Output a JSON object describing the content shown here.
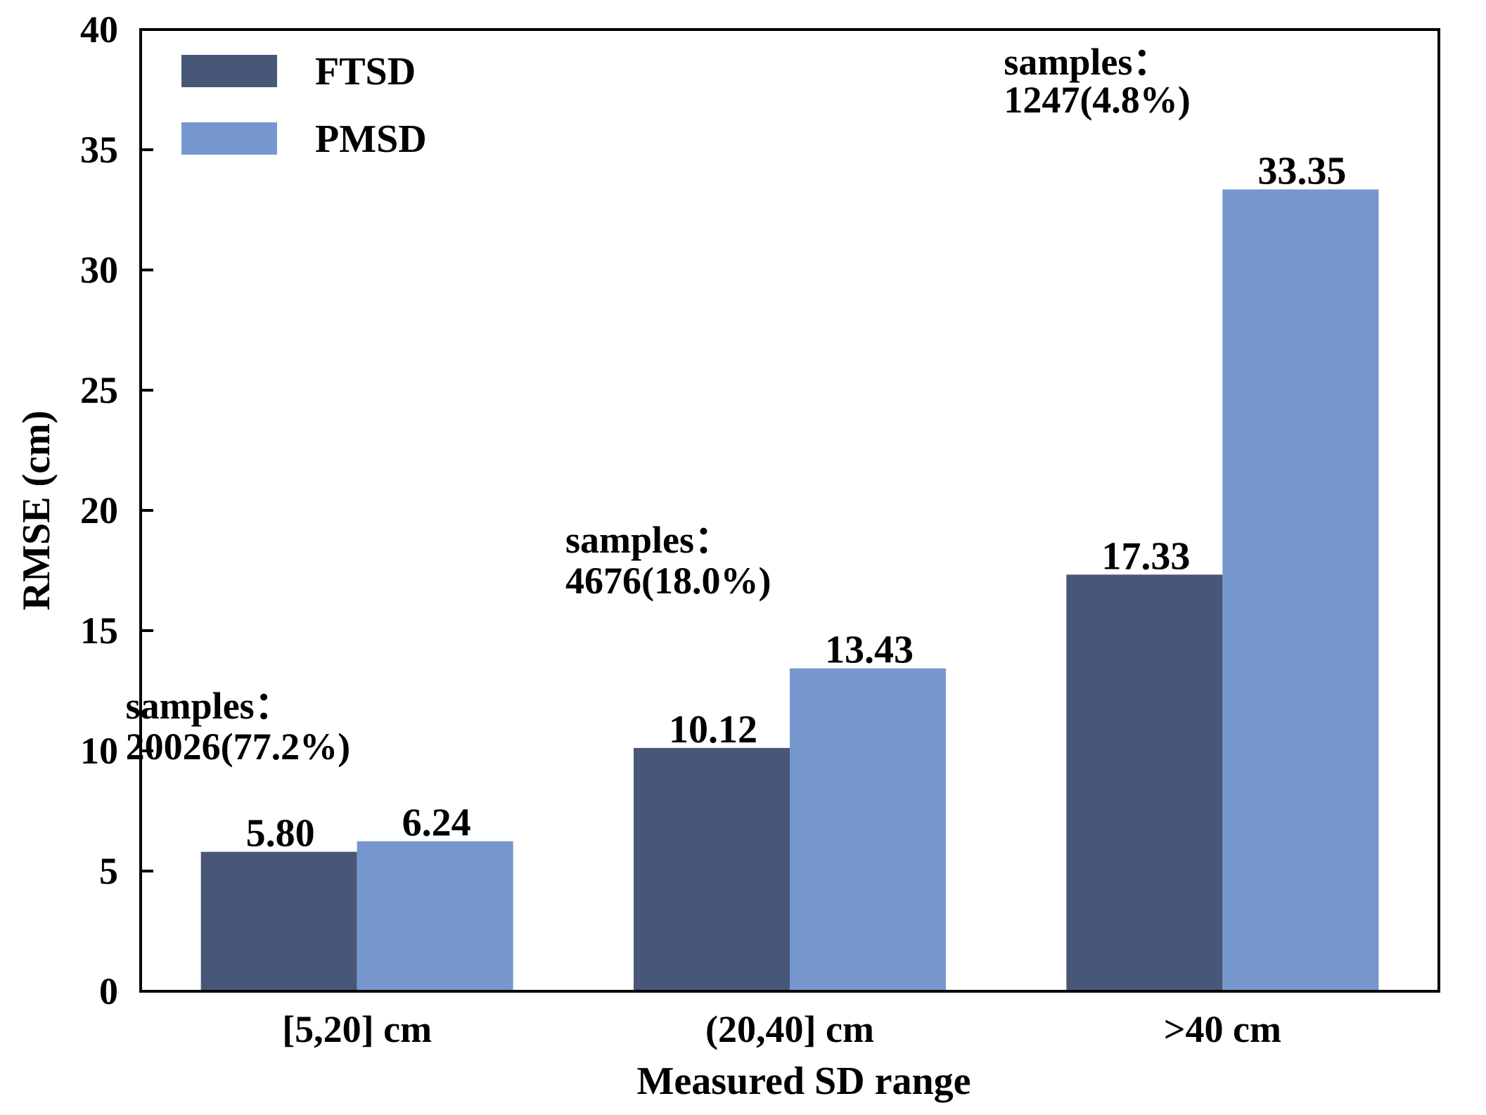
{
  "chart_data": {
    "type": "bar",
    "title": "",
    "xlabel": "Measured SD range",
    "ylabel": "RMSE (cm)",
    "ylim": [
      0,
      40
    ],
    "yticks": [
      0,
      5,
      10,
      15,
      20,
      25,
      30,
      35,
      40
    ],
    "categories": [
      "[5,20] cm",
      "(20,40] cm",
      ">40 cm"
    ],
    "series": [
      {
        "name": "FTSD",
        "color": "#485777",
        "values": [
          5.8,
          10.12,
          17.33
        ],
        "labels": [
          "5.80",
          "10.12",
          "17.33"
        ]
      },
      {
        "name": "PMSD",
        "color": "#7597cd",
        "values": [
          6.24,
          13.43,
          33.35
        ],
        "labels": [
          "6.24",
          "13.43",
          "33.35"
        ]
      }
    ],
    "annotations": [
      {
        "line1": "samples：",
        "line2": "20026(77.2%)"
      },
      {
        "line1": "samples：",
        "line2": "4676(18.0%)"
      },
      {
        "line1": "samples：",
        "line2": "1247(4.8%)"
      }
    ],
    "legend_position": "top-left",
    "grid": false
  }
}
